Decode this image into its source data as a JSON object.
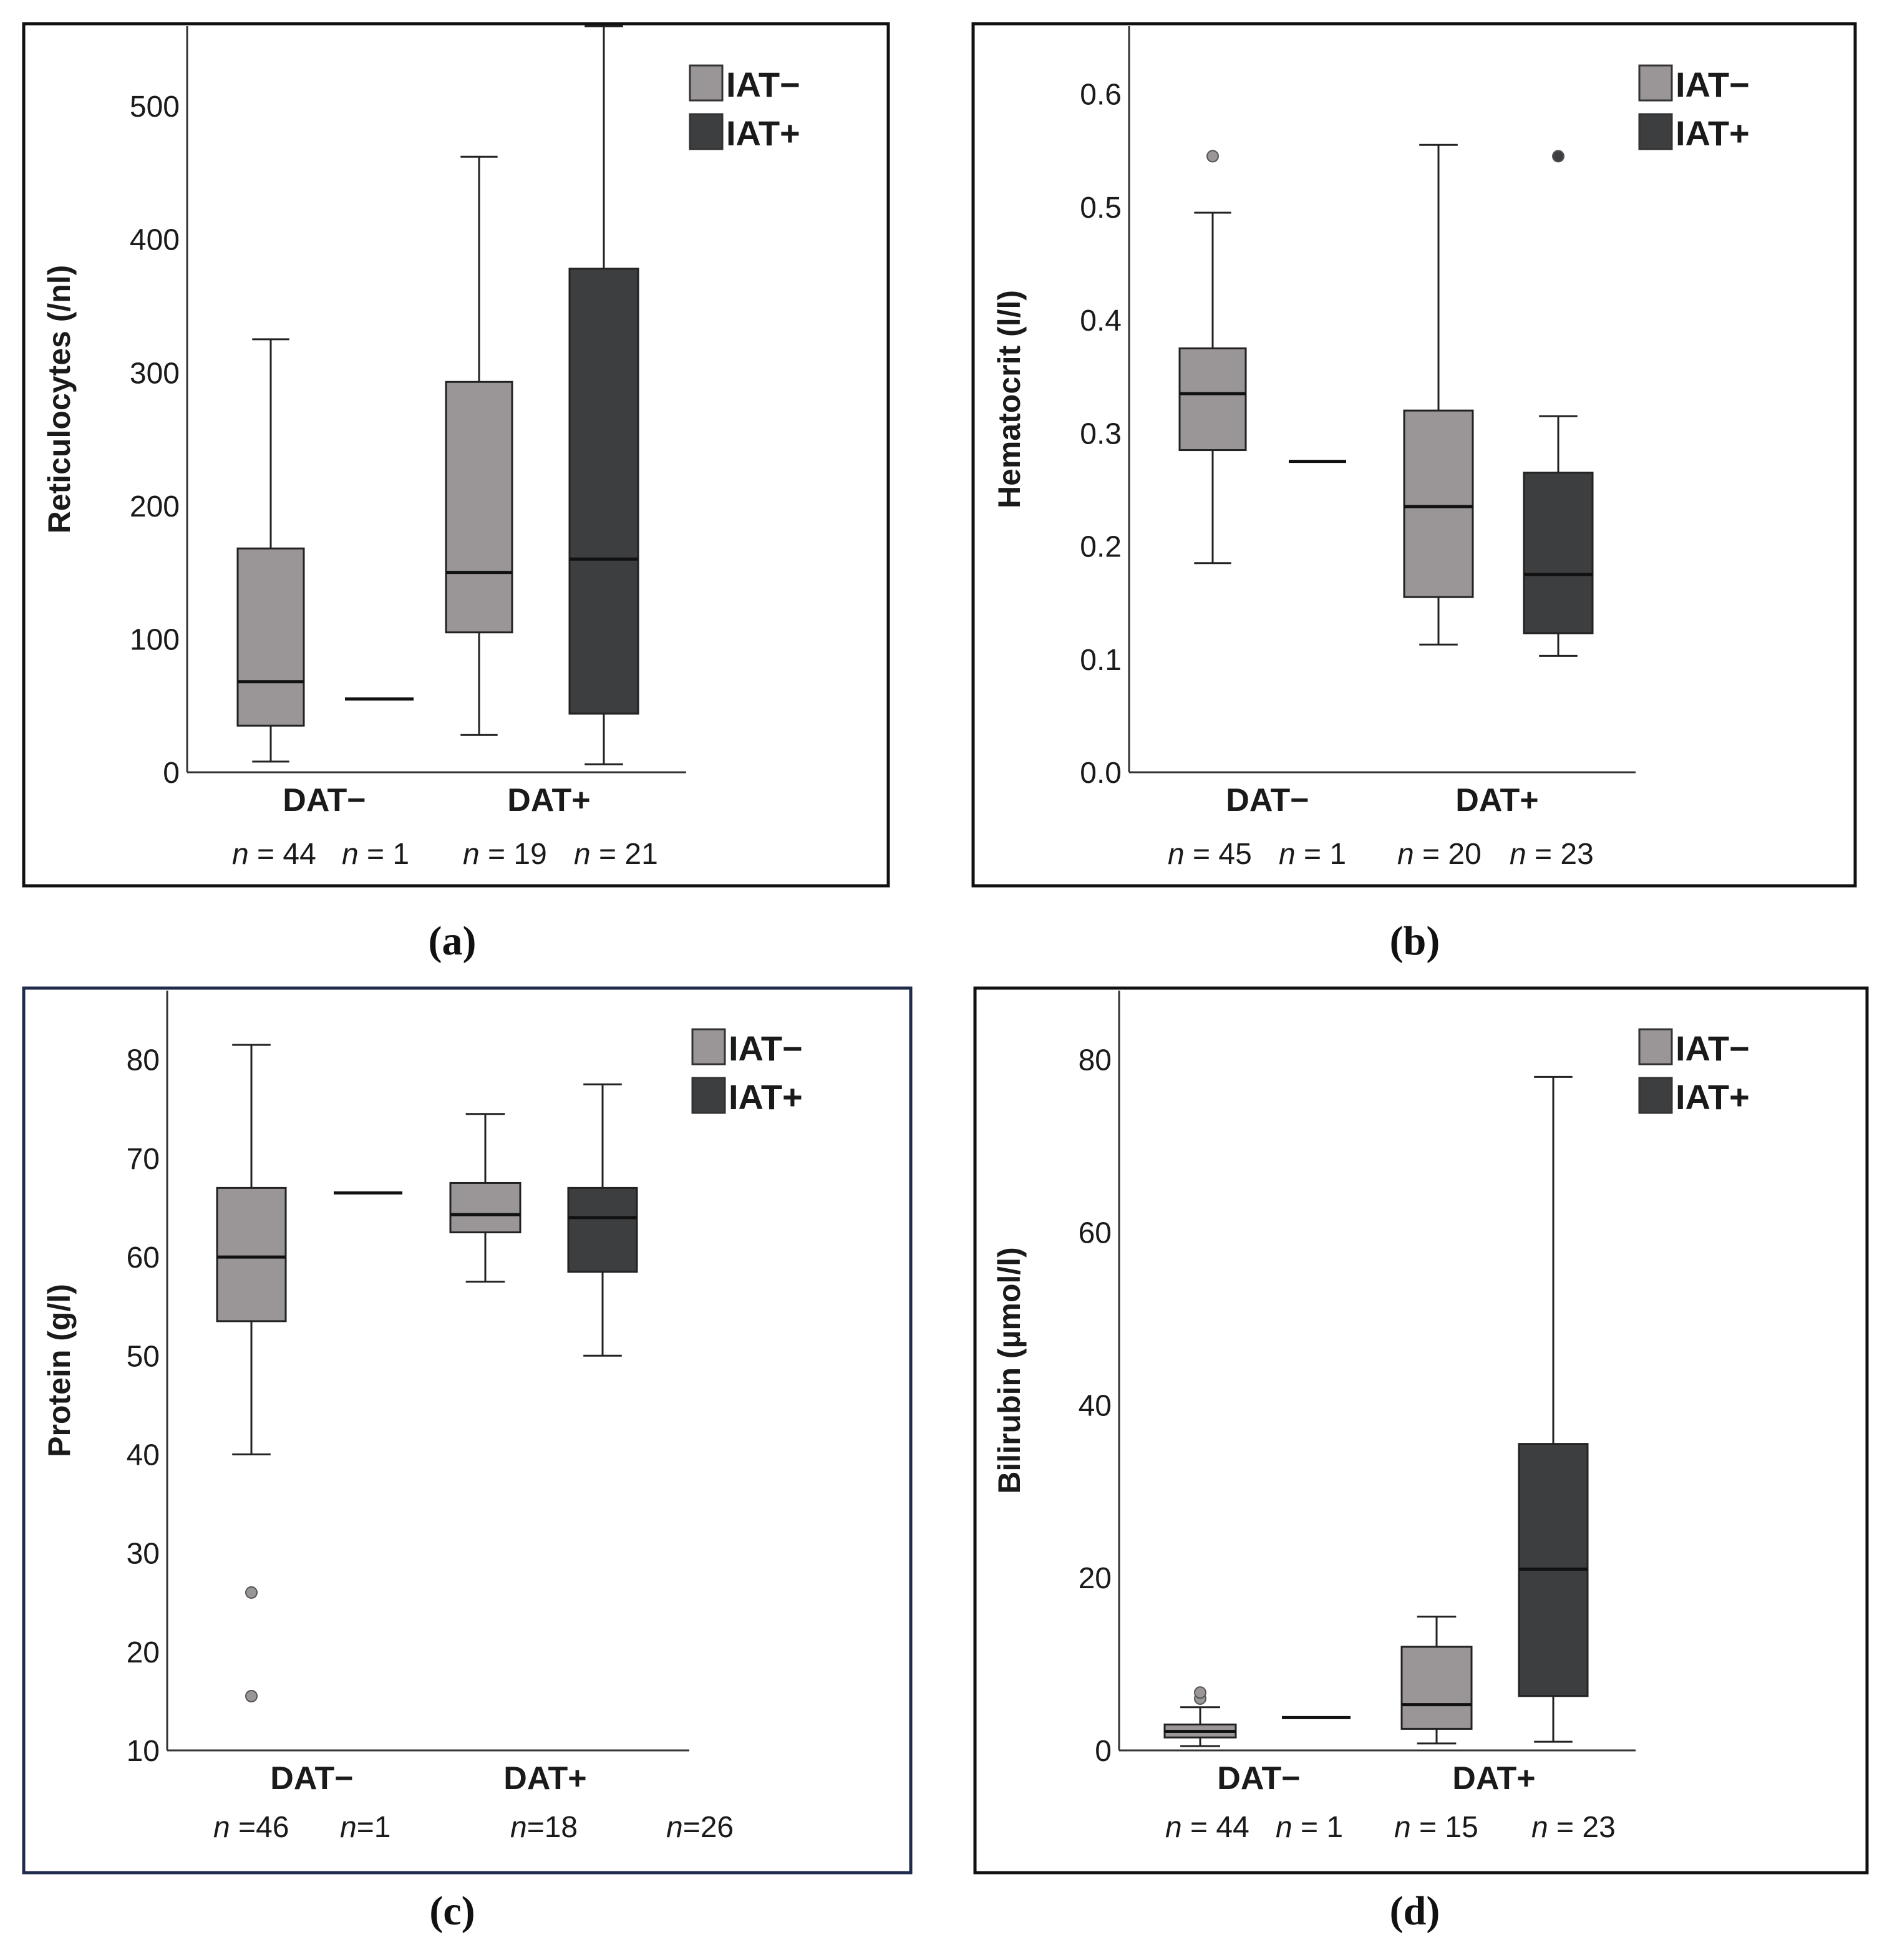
{
  "colors": {
    "iat_neg": "#9a9596",
    "iat_pos": "#3d3e40",
    "stroke": "#222222",
    "frame": "#111111",
    "frame_c": "#1f2b4a"
  },
  "chart_data": [
    {
      "type": "box",
      "caption": "(a)",
      "ylabel": "Reticulocytes (/nl)",
      "ylim": [
        0,
        560
      ],
      "yticks": [
        0,
        100,
        200,
        300,
        400,
        500
      ],
      "groups": [
        "DAT−",
        "DAT+"
      ],
      "legend": [
        "IAT−",
        "IAT+"
      ],
      "n_labels": [
        {
          "prefix": "n",
          "text": " = 44"
        },
        {
          "prefix": "n",
          "text": " = 1"
        },
        {
          "prefix": "n",
          "text": " = 19"
        },
        {
          "prefix": "n",
          "text": " = 21"
        }
      ],
      "boxes": [
        {
          "group": "DAT−",
          "series": "IAT−",
          "whisker_low": 8,
          "q1": 35,
          "median": 68,
          "q3": 168,
          "whisker_high": 325,
          "outliers": []
        },
        {
          "group": "DAT−",
          "series": "IAT+",
          "whisker_low": 55,
          "q1": 55,
          "median": 55,
          "q3": 55,
          "whisker_high": 55,
          "outliers": []
        },
        {
          "group": "DAT+",
          "series": "IAT−",
          "whisker_low": 28,
          "q1": 105,
          "median": 150,
          "q3": 293,
          "whisker_high": 462,
          "outliers": []
        },
        {
          "group": "DAT+",
          "series": "IAT+",
          "whisker_low": 6,
          "q1": 44,
          "median": 160,
          "q3": 378,
          "whisker_high": 560,
          "outliers": []
        }
      ]
    },
    {
      "type": "box",
      "caption": "(b)",
      "ylabel": "Hematocrit (l/l)",
      "ylim": [
        0,
        0.66
      ],
      "yticks": [
        0.0,
        0.1,
        0.2,
        0.3,
        0.4,
        0.5,
        0.6
      ],
      "yticklabels": [
        "0.0",
        "0.1",
        "0.2",
        "0.3",
        "0.4",
        "0.5",
        "0.6"
      ],
      "groups": [
        "DAT−",
        "DAT+"
      ],
      "legend": [
        "IAT−",
        "IAT+"
      ],
      "n_labels": [
        {
          "prefix": "n",
          "text": " = 45"
        },
        {
          "prefix": "n",
          "text": " = 1"
        },
        {
          "prefix": "n",
          "text": " = 20"
        },
        {
          "prefix": "n",
          "text": " = 23"
        }
      ],
      "boxes": [
        {
          "group": "DAT−",
          "series": "IAT−",
          "whisker_low": 0.185,
          "q1": 0.285,
          "median": 0.335,
          "q3": 0.375,
          "whisker_high": 0.495,
          "outliers": [
            0.545
          ]
        },
        {
          "group": "DAT−",
          "series": "IAT+",
          "whisker_low": 0.275,
          "q1": 0.275,
          "median": 0.275,
          "q3": 0.275,
          "whisker_high": 0.275,
          "outliers": []
        },
        {
          "group": "DAT+",
          "series": "IAT−",
          "whisker_low": 0.113,
          "q1": 0.155,
          "median": 0.235,
          "q3": 0.32,
          "whisker_high": 0.555,
          "outliers": []
        },
        {
          "group": "DAT+",
          "series": "IAT+",
          "whisker_low": 0.103,
          "q1": 0.123,
          "median": 0.175,
          "q3": 0.265,
          "whisker_high": 0.315,
          "outliers": [
            0.545
          ]
        }
      ]
    },
    {
      "type": "box",
      "caption": "(c)",
      "ylabel": "Protein (g/l)",
      "ylim": [
        10,
        87
      ],
      "yticks": [
        10,
        20,
        30,
        40,
        50,
        60,
        70,
        80
      ],
      "groups": [
        "DAT−",
        "DAT+"
      ],
      "legend": [
        "IAT−",
        "IAT+"
      ],
      "n_labels": [
        {
          "prefix": "n",
          "text": " =46"
        },
        {
          "prefix": "n",
          "text": "=1"
        },
        {
          "prefix": "n",
          "text": "=18"
        },
        {
          "prefix": "n",
          "text": "=26"
        }
      ],
      "boxes": [
        {
          "group": "DAT−",
          "series": "IAT−",
          "whisker_low": 40,
          "q1": 53.5,
          "median": 60,
          "q3": 67,
          "whisker_high": 81.5,
          "outliers": [
            26,
            15.5
          ]
        },
        {
          "group": "DAT−",
          "series": "IAT+",
          "whisker_low": 66.5,
          "q1": 66.5,
          "median": 66.5,
          "q3": 66.5,
          "whisker_high": 66.5,
          "outliers": []
        },
        {
          "group": "DAT+",
          "series": "IAT−",
          "whisker_low": 57.5,
          "q1": 62.5,
          "median": 64.3,
          "q3": 67.5,
          "whisker_high": 74.5,
          "outliers": []
        },
        {
          "group": "DAT+",
          "series": "IAT+",
          "whisker_low": 50,
          "q1": 58.5,
          "median": 64,
          "q3": 67,
          "whisker_high": 77.5,
          "outliers": []
        }
      ]
    },
    {
      "type": "box",
      "caption": "(d)",
      "ylabel": "Bilirubin (µmol/l)",
      "ylim": [
        0,
        88
      ],
      "yticks": [
        0,
        20,
        40,
        60,
        80
      ],
      "groups": [
        "DAT−",
        "DAT+"
      ],
      "legend": [
        "IAT−",
        "IAT+"
      ],
      "n_labels": [
        {
          "prefix": "n",
          "text": " = 44"
        },
        {
          "prefix": "n",
          "text": " = 1"
        },
        {
          "prefix": "n",
          "text": " = 15"
        },
        {
          "prefix": "n",
          "text": " = 23"
        }
      ],
      "boxes": [
        {
          "group": "DAT−",
          "series": "IAT−",
          "whisker_low": 0.5,
          "q1": 1.5,
          "median": 2.2,
          "q3": 3,
          "whisker_high": 5,
          "outliers": [
            6,
            6.7
          ]
        },
        {
          "group": "DAT−",
          "series": "IAT+",
          "whisker_low": 3.8,
          "q1": 3.8,
          "median": 3.8,
          "q3": 3.8,
          "whisker_high": 3.8,
          "outliers": []
        },
        {
          "group": "DAT+",
          "series": "IAT−",
          "whisker_low": 0.8,
          "q1": 2.5,
          "median": 5.3,
          "q3": 12,
          "whisker_high": 15.5,
          "outliers": []
        },
        {
          "group": "DAT+",
          "series": "IAT+",
          "whisker_low": 1,
          "q1": 6.3,
          "median": 21,
          "q3": 35.5,
          "whisker_high": 78,
          "outliers": []
        }
      ]
    }
  ]
}
